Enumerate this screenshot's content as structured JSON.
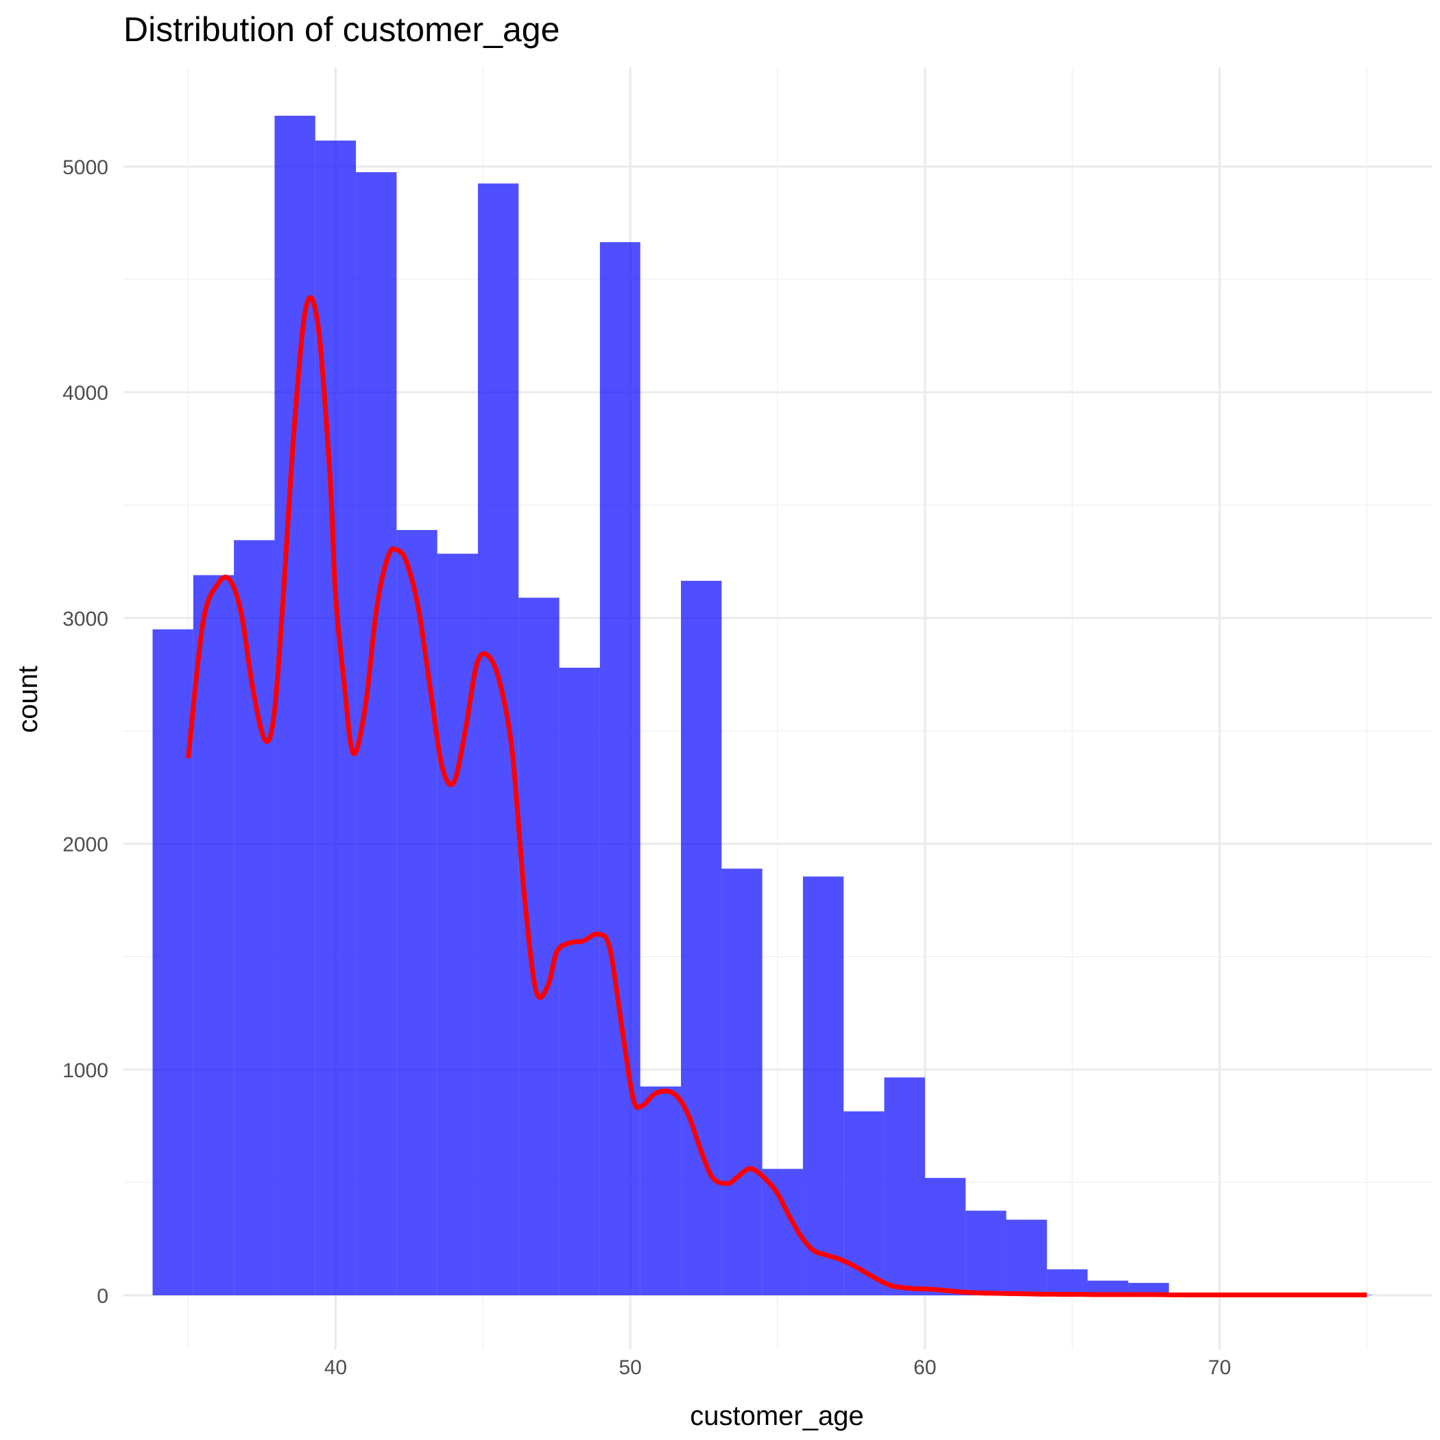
{
  "chart_data": {
    "type": "bar",
    "title": "Distribution of customer_age",
    "xlabel": "customer_age",
    "ylabel": "count",
    "xlim": [
      32.8,
      77.2
    ],
    "ylim": [
      -240,
      5440
    ],
    "x_ticks": [
      40,
      50,
      60,
      70
    ],
    "x_minor_ticks": [
      35,
      45,
      55,
      65,
      75
    ],
    "y_ticks": [
      0,
      1000,
      2000,
      3000,
      4000,
      5000
    ],
    "y_minor_ticks": [
      500,
      1500,
      2500,
      3500,
      4500
    ],
    "grid": true,
    "bar_color": "#0000FF",
    "bar_opacity": 0.69,
    "density_color": "#FF0000",
    "bins": [
      {
        "x0": 33.79,
        "x1": 35.17,
        "count": 2950
      },
      {
        "x0": 35.17,
        "x1": 36.55,
        "count": 3190
      },
      {
        "x0": 36.55,
        "x1": 37.93,
        "count": 3345
      },
      {
        "x0": 37.93,
        "x1": 39.31,
        "count": 5225
      },
      {
        "x0": 39.31,
        "x1": 40.69,
        "count": 5115
      },
      {
        "x0": 40.69,
        "x1": 42.07,
        "count": 4975
      },
      {
        "x0": 42.07,
        "x1": 43.45,
        "count": 3390
      },
      {
        "x0": 43.45,
        "x1": 44.83,
        "count": 3285
      },
      {
        "x0": 44.83,
        "x1": 46.21,
        "count": 4925
      },
      {
        "x0": 46.21,
        "x1": 47.59,
        "count": 3090
      },
      {
        "x0": 47.59,
        "x1": 48.97,
        "count": 2780
      },
      {
        "x0": 48.97,
        "x1": 50.34,
        "count": 4665
      },
      {
        "x0": 50.34,
        "x1": 51.72,
        "count": 925
      },
      {
        "x0": 51.72,
        "x1": 53.1,
        "count": 3165
      },
      {
        "x0": 53.1,
        "x1": 54.48,
        "count": 1890
      },
      {
        "x0": 54.48,
        "x1": 55.86,
        "count": 560
      },
      {
        "x0": 55.86,
        "x1": 57.24,
        "count": 1855
      },
      {
        "x0": 57.24,
        "x1": 58.62,
        "count": 815
      },
      {
        "x0": 58.62,
        "x1": 60.0,
        "count": 965
      },
      {
        "x0": 60.0,
        "x1": 61.38,
        "count": 520
      },
      {
        "x0": 61.38,
        "x1": 62.76,
        "count": 375
      },
      {
        "x0": 62.76,
        "x1": 64.14,
        "count": 335
      },
      {
        "x0": 64.14,
        "x1": 65.52,
        "count": 115
      },
      {
        "x0": 65.52,
        "x1": 66.9,
        "count": 65
      },
      {
        "x0": 66.9,
        "x1": 68.28,
        "count": 55
      },
      {
        "x0": 68.28,
        "x1": 69.66,
        "count": 3
      },
      {
        "x0": 69.66,
        "x1": 71.03,
        "count": 2
      },
      {
        "x0": 71.03,
        "x1": 72.41,
        "count": 2
      },
      {
        "x0": 72.41,
        "x1": 73.79,
        "count": 2
      },
      {
        "x0": 73.79,
        "x1": 75.17,
        "count": 2
      }
    ],
    "density_curve": {
      "x": [
        35.0,
        35.5,
        36.0,
        36.4,
        36.8,
        37.2,
        37.6,
        37.9,
        38.2,
        38.6,
        39.0,
        39.4,
        39.8,
        40.0,
        40.3,
        40.6,
        41.0,
        41.4,
        41.8,
        42.1,
        42.4,
        42.8,
        43.2,
        43.6,
        44.0,
        44.4,
        44.8,
        45.2,
        45.6,
        46.0,
        46.4,
        46.8,
        47.2,
        47.5,
        47.9,
        48.4,
        48.9,
        49.3,
        49.7,
        50.1,
        50.4,
        50.8,
        51.2,
        51.6,
        52.0,
        52.4,
        52.8,
        53.3,
        53.6,
        54.0,
        54.3,
        54.7,
        55.0,
        55.4,
        55.8,
        56.2,
        56.6,
        57.1,
        57.6,
        58.0,
        58.4,
        58.8,
        59.2,
        59.6,
        60.0,
        60.4,
        60.8,
        61.2,
        61.6,
        62.0,
        62.4,
        62.8,
        63.2,
        63.6,
        64.0,
        64.4,
        64.8,
        65.3,
        65.8,
        66.3,
        66.8,
        67.3,
        67.8,
        68.5,
        69.2,
        70.0,
        71.0,
        72.0,
        73.0,
        74.0,
        75.0
      ],
      "y": [
        2380,
        2980,
        3150,
        3170,
        3020,
        2680,
        2460,
        2560,
        3050,
        3850,
        4380,
        4300,
        3650,
        3100,
        2700,
        2400,
        2600,
        3050,
        3280,
        3300,
        3250,
        3050,
        2700,
        2350,
        2270,
        2500,
        2800,
        2830,
        2700,
        2400,
        1780,
        1350,
        1370,
        1520,
        1560,
        1570,
        1600,
        1540,
        1200,
        870,
        840,
        890,
        905,
        880,
        790,
        640,
        520,
        495,
        520,
        560,
        548,
        500,
        450,
        350,
        260,
        200,
        180,
        160,
        130,
        100,
        70,
        45,
        35,
        30,
        28,
        25,
        20,
        15,
        12,
        10,
        9,
        8,
        7,
        6,
        5,
        5,
        4,
        4,
        3,
        3,
        3,
        3,
        3,
        2,
        2,
        2,
        2,
        2,
        2,
        2,
        2
      ]
    }
  }
}
